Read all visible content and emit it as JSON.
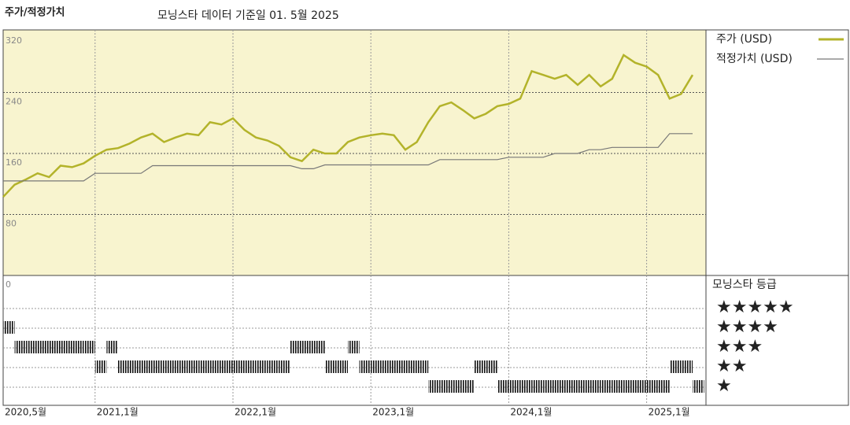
{
  "chart_data": {
    "type": "line",
    "title": "주가/적정가치",
    "subtitle": "모닝스타 데이터 기준일 01. 5월 2025",
    "x": [
      "2020-05",
      "2020-06",
      "2020-07",
      "2020-08",
      "2020-09",
      "2020-10",
      "2020-11",
      "2020-12",
      "2021-01",
      "2021-02",
      "2021-03",
      "2021-04",
      "2021-05",
      "2021-06",
      "2021-07",
      "2021-08",
      "2021-09",
      "2021-10",
      "2021-11",
      "2021-12",
      "2022-01",
      "2022-02",
      "2022-03",
      "2022-04",
      "2022-05",
      "2022-06",
      "2022-07",
      "2022-08",
      "2022-09",
      "2022-10",
      "2022-11",
      "2022-12",
      "2023-01",
      "2023-02",
      "2023-03",
      "2023-04",
      "2023-05",
      "2023-06",
      "2023-07",
      "2023-08",
      "2023-09",
      "2023-10",
      "2023-11",
      "2023-12",
      "2024-01",
      "2024-02",
      "2024-03",
      "2024-04",
      "2024-05",
      "2024-06",
      "2024-07",
      "2024-08",
      "2024-09",
      "2024-10",
      "2024-11",
      "2024-12",
      "2025-01",
      "2025-02",
      "2025-03",
      "2025-04",
      "2025-05"
    ],
    "series": [
      {
        "name": "주가 (USD)",
        "color": "#b3b32a",
        "values": [
          103,
          119,
          126,
          134,
          129,
          144,
          142,
          147,
          157,
          165,
          167,
          173,
          181,
          186,
          175,
          181,
          186,
          184,
          201,
          198,
          206,
          191,
          181,
          177,
          170,
          155,
          150,
          165,
          160,
          160,
          175,
          181,
          184,
          186,
          184,
          165,
          175,
          201,
          222,
          227,
          217,
          206,
          212,
          222,
          225,
          232,
          268,
          263,
          258,
          263,
          250,
          263,
          248,
          258,
          289,
          279,
          274,
          263,
          232,
          238,
          263
        ]
      },
      {
        "name": "적정가치 (USD)",
        "color": "#777777",
        "values": [
          124,
          124,
          124,
          124,
          124,
          124,
          124,
          124,
          134,
          134,
          134,
          134,
          134,
          144,
          144,
          144,
          144,
          144,
          144,
          144,
          144,
          144,
          144,
          144,
          144,
          144,
          140,
          140,
          145,
          145,
          145,
          145,
          145,
          145,
          145,
          145,
          145,
          145,
          152,
          152,
          152,
          152,
          152,
          152,
          155,
          155,
          155,
          155,
          160,
          160,
          160,
          165,
          165,
          168,
          168,
          168,
          168,
          168,
          186,
          186,
          186
        ]
      }
    ],
    "ylim": [
      0,
      320
    ],
    "yticks": [
      0,
      80,
      160,
      240,
      320
    ],
    "grid": true,
    "xticks": [
      {
        "value": "2020-05",
        "label": "2020,5월"
      },
      {
        "value": "2021-01",
        "label": "2021,1월"
      },
      {
        "value": "2022-01",
        "label": "2022,1월"
      },
      {
        "value": "2023-01",
        "label": "2023,1월"
      },
      {
        "value": "2024-01",
        "label": "2024,1월"
      },
      {
        "value": "2025-01",
        "label": "2025,1월"
      }
    ],
    "rating": {
      "title": "모닝스타 등급",
      "labels": [
        "★★★★★",
        "★★★★",
        "★★★",
        "★★",
        "★"
      ],
      "color": "#111111",
      "values": [
        4,
        3,
        3,
        3,
        3,
        3,
        3,
        3,
        2,
        3,
        2,
        2,
        2,
        2,
        2,
        2,
        2,
        2,
        2,
        2,
        2,
        2,
        2,
        2,
        2,
        3,
        3,
        3,
        2,
        2,
        3,
        2,
        2,
        2,
        2,
        2,
        2,
        1,
        1,
        1,
        1,
        2,
        2,
        1,
        1,
        1,
        1,
        1,
        1,
        1,
        1,
        1,
        1,
        1,
        1,
        1,
        1,
        1,
        2,
        2,
        1
      ]
    }
  }
}
